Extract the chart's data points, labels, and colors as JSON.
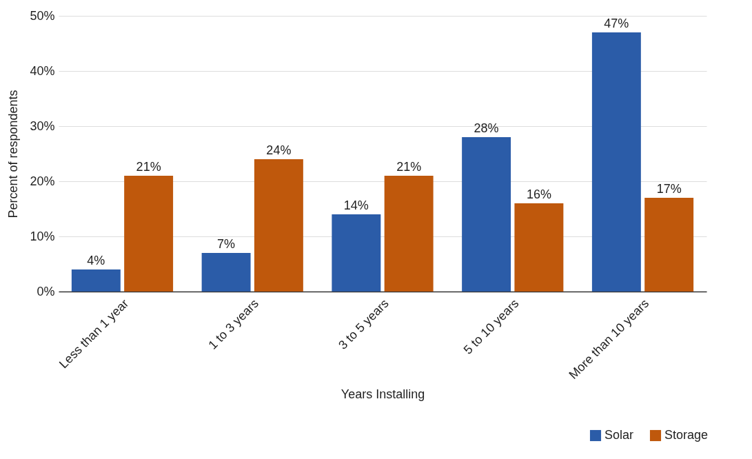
{
  "chart_data": {
    "type": "bar",
    "xlabel": "Years Installing",
    "ylabel": "Percent of respondents",
    "categories": [
      "Less than 1 year",
      "1 to 3 years",
      "3 to 5 years",
      "5 to 10 years",
      "More than 10 years"
    ],
    "series": [
      {
        "name": "Solar",
        "color": "#2b5ca8",
        "values": [
          4,
          7,
          14,
          28,
          47
        ],
        "value_labels": [
          "4%",
          "7%",
          "14%",
          "28%",
          "47%"
        ]
      },
      {
        "name": "Storage",
        "color": "#bf580c",
        "values": [
          21,
          24,
          21,
          16,
          17
        ],
        "value_labels": [
          "21%",
          "24%",
          "21%",
          "16%",
          "17%"
        ]
      }
    ],
    "ylim": [
      0,
      50
    ],
    "yticks": [
      {
        "value": 0,
        "label": "0%"
      },
      {
        "value": 10,
        "label": "10%"
      },
      {
        "value": 20,
        "label": "20%"
      },
      {
        "value": 30,
        "label": "30%"
      },
      {
        "value": 40,
        "label": "40%"
      },
      {
        "value": 50,
        "label": "50%"
      }
    ],
    "grid": "y",
    "legend": "bottom right"
  }
}
